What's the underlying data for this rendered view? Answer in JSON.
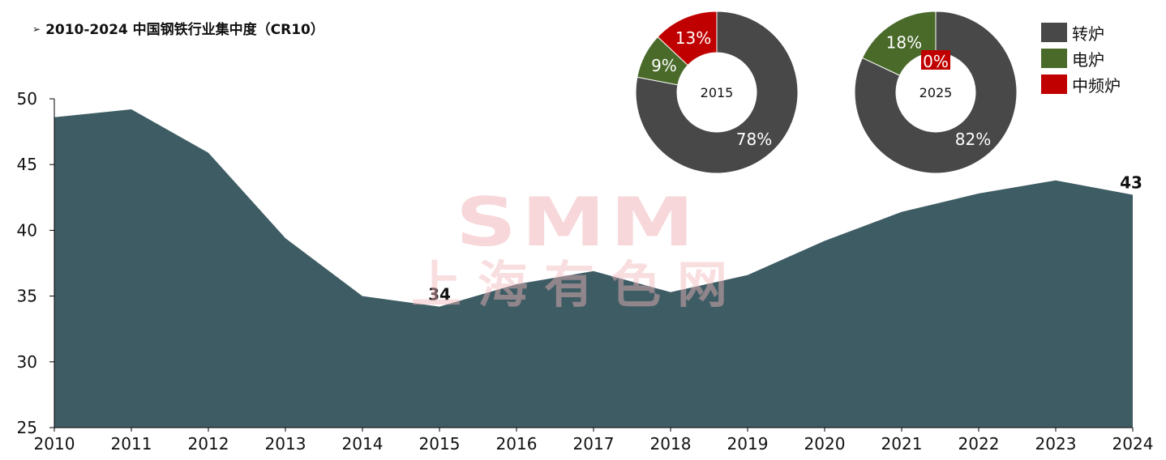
{
  "title": "2010-2024 中国钢铁行业集中度（CR10）",
  "title_marker": "➢",
  "watermark": {
    "logo": "SMM",
    "text": "上海有色网"
  },
  "colors": {
    "area": "#3e5c64",
    "converter": "#484848",
    "electric": "#4a6a2a",
    "medium_freq": "#c00000",
    "axis": "#000000"
  },
  "chart_data": [
    {
      "type": "area",
      "categories": [
        "2010",
        "2011",
        "2012",
        "2013",
        "2014",
        "2015",
        "2016",
        "2017",
        "2018",
        "2019",
        "2020",
        "2021",
        "2022",
        "2023",
        "2024"
      ],
      "values": [
        48.6,
        49.2,
        45.9,
        39.4,
        35.0,
        34.2,
        35.9,
        36.9,
        35.3,
        36.6,
        39.2,
        41.4,
        42.8,
        43.8,
        42.7
      ],
      "ylim": [
        25,
        50
      ],
      "yticks": [
        25,
        30,
        35,
        40,
        45,
        50
      ],
      "annotations": [
        {
          "category": "2015",
          "label": "34"
        },
        {
          "category": "2024",
          "label": "43"
        }
      ]
    },
    {
      "type": "pie",
      "center_label": "2015",
      "slices": [
        {
          "name": "转炉",
          "value": 78,
          "label": "78%"
        },
        {
          "name": "电炉",
          "value": 9,
          "label": "9%"
        },
        {
          "name": "中频炉",
          "value": 13,
          "label": "13%"
        }
      ]
    },
    {
      "type": "pie",
      "center_label": "2025",
      "slices": [
        {
          "name": "转炉",
          "value": 82,
          "label": "82%"
        },
        {
          "name": "电炉",
          "value": 18,
          "label": "18%"
        },
        {
          "name": "中频炉",
          "value": 0,
          "label": "0%"
        }
      ]
    }
  ],
  "legend": [
    {
      "label": "转炉",
      "color": "#484848"
    },
    {
      "label": "电炉",
      "color": "#4a6a2a"
    },
    {
      "label": "中频炉",
      "color": "#c00000"
    }
  ]
}
